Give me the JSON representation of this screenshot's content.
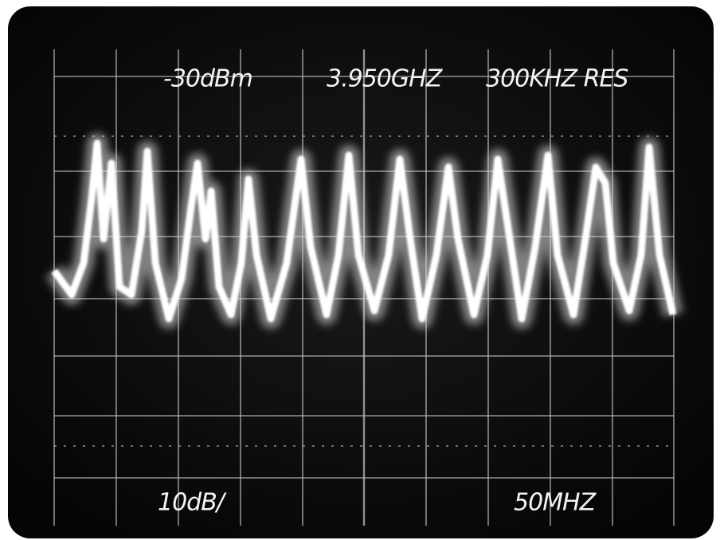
{
  "display": {
    "reference_level": "-30dBm",
    "center_frequency": "3.950GHZ",
    "resolution": "300KHZ RES",
    "scale": "10dB/",
    "span": "50MHZ"
  }
}
